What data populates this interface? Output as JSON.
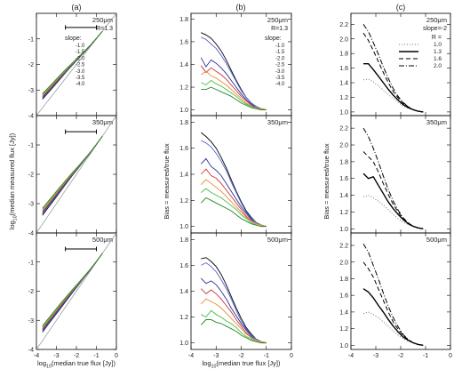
{
  "figure": {
    "panel_letters": [
      "(a)",
      "(b)",
      "(c)"
    ],
    "colors": {
      "frame": "#000000",
      "one_to_one": "#9aa0a6",
      "errbar": "#000000"
    }
  },
  "chart_data": [
    {
      "type": "line",
      "column": "a",
      "xlabel": "log10(median true flux [Jy])",
      "ylabel": "log10(median measured flux [Jy])",
      "xlim": [
        -4,
        0
      ],
      "ylim": [
        -4,
        0
      ],
      "xticks": [
        -4,
        -3,
        -2,
        -1,
        0
      ],
      "yticks": [
        -4,
        -3,
        -2,
        -1
      ],
      "one_to_one_line": true,
      "legend_title": "slope:",
      "series_names": [
        "-1.0",
        "-1.5",
        "-2.0",
        "-2.5",
        "-3.0",
        "-3.5",
        "-4.0"
      ],
      "series_colors": [
        "#000000",
        "#5566cc",
        "#223399",
        "#cc3333",
        "#ee8833",
        "#44bb44",
        "#228822"
      ],
      "panels": [
        {
          "label": "250μm",
          "extra_label": "R=1.3",
          "show_legend": true,
          "errbar": {
            "x": [
              -2.55,
              -1.0
            ],
            "y": -0.55
          },
          "x": [
            -3.7,
            -3.4,
            -3.1,
            -2.8,
            -2.5,
            -2.2,
            -1.9,
            -1.6,
            -1.3,
            -1.0,
            -0.7
          ],
          "offsets": [
            0.45,
            0.4,
            0.36,
            0.32,
            0.28,
            0.22,
            0.16,
            0.1,
            0.05,
            0.02,
            0.0
          ],
          "spread": [
            0.22,
            0.2,
            0.18,
            0.15,
            0.12,
            0.09,
            0.06,
            0.04,
            0.02,
            0.01,
            0.0
          ]
        },
        {
          "label": "350μm",
          "extra_label": "",
          "show_legend": false,
          "errbar": {
            "x": [
              -2.55,
              -1.0
            ],
            "y": -0.55
          },
          "x": [
            -3.7,
            -3.4,
            -3.1,
            -2.8,
            -2.5,
            -2.2,
            -1.9,
            -1.6,
            -1.3,
            -1.0,
            -0.7
          ],
          "offsets": [
            0.42,
            0.38,
            0.34,
            0.3,
            0.26,
            0.21,
            0.15,
            0.1,
            0.05,
            0.02,
            0.0
          ],
          "spread": [
            0.24,
            0.22,
            0.2,
            0.17,
            0.13,
            0.1,
            0.07,
            0.04,
            0.02,
            0.01,
            0.0
          ]
        },
        {
          "label": "500μm",
          "extra_label": "",
          "show_legend": false,
          "errbar": {
            "x": [
              -2.55,
              -1.0
            ],
            "y": -0.55
          },
          "x": [
            -3.7,
            -3.4,
            -3.1,
            -2.8,
            -2.5,
            -2.2,
            -1.9,
            -1.6,
            -1.3,
            -1.0,
            -0.7
          ],
          "offsets": [
            0.4,
            0.37,
            0.33,
            0.29,
            0.25,
            0.2,
            0.15,
            0.1,
            0.05,
            0.02,
            0.0
          ],
          "spread": [
            0.22,
            0.2,
            0.19,
            0.17,
            0.14,
            0.11,
            0.08,
            0.05,
            0.03,
            0.01,
            0.0
          ]
        }
      ]
    },
    {
      "type": "line",
      "column": "b",
      "xlabel": "log10(median true flux [Jy])",
      "ylabel": "Bias = measured/true flux",
      "xlim": [
        -4,
        0
      ],
      "ylim": [
        0.95,
        1.85
      ],
      "xticks": [
        -4,
        -3,
        -2,
        -1,
        0
      ],
      "yticks": [
        1.0,
        1.2,
        1.4,
        1.6,
        1.8
      ],
      "legend_title": "slope:",
      "series_names": [
        "-1.0",
        "-1.5",
        "-2.0",
        "-2.5",
        "-3.0",
        "-3.5",
        "-4.0"
      ],
      "series_colors": [
        "#000000",
        "#5566cc",
        "#223399",
        "#cc3333",
        "#ee8833",
        "#44bb44",
        "#228822"
      ],
      "x": [
        -3.6,
        -3.4,
        -3.2,
        -3.0,
        -2.8,
        -2.6,
        -2.4,
        -2.2,
        -2.0,
        -1.8,
        -1.6,
        -1.4,
        -1.2,
        -1.0
      ],
      "panels": [
        {
          "label": "250μm",
          "extra_label": "R=1.3",
          "show_legend": true,
          "series": [
            {
              "values": [
                1.68,
                1.66,
                1.63,
                1.58,
                1.52,
                1.44,
                1.35,
                1.26,
                1.18,
                1.11,
                1.06,
                1.03,
                1.01,
                1.0
              ]
            },
            {
              "values": [
                1.64,
                1.62,
                1.58,
                1.54,
                1.48,
                1.41,
                1.33,
                1.25,
                1.17,
                1.11,
                1.06,
                1.03,
                1.01,
                1.0
              ]
            },
            {
              "values": [
                1.46,
                1.38,
                1.44,
                1.41,
                1.37,
                1.32,
                1.26,
                1.2,
                1.14,
                1.09,
                1.05,
                1.02,
                1.01,
                1.0
              ]
            },
            {
              "values": [
                1.39,
                1.33,
                1.37,
                1.34,
                1.31,
                1.27,
                1.22,
                1.17,
                1.12,
                1.08,
                1.04,
                1.02,
                1.01,
                1.0
              ]
            },
            {
              "values": [
                1.31,
                1.34,
                1.3,
                1.28,
                1.25,
                1.22,
                1.18,
                1.14,
                1.1,
                1.06,
                1.03,
                1.02,
                1.01,
                1.0
              ]
            },
            {
              "values": [
                1.24,
                1.22,
                1.26,
                1.23,
                1.21,
                1.18,
                1.15,
                1.12,
                1.08,
                1.05,
                1.03,
                1.01,
                1.0,
                1.0
              ]
            },
            {
              "values": [
                1.18,
                1.18,
                1.2,
                1.18,
                1.16,
                1.14,
                1.12,
                1.09,
                1.06,
                1.04,
                1.02,
                1.01,
                1.0,
                1.0
              ]
            }
          ]
        },
        {
          "label": "350μm",
          "extra_label": "",
          "show_legend": false,
          "series": [
            {
              "values": [
                1.72,
                1.69,
                1.65,
                1.6,
                1.53,
                1.45,
                1.36,
                1.27,
                1.19,
                1.12,
                1.07,
                1.03,
                1.01,
                1.0
              ]
            },
            {
              "values": [
                1.66,
                1.64,
                1.61,
                1.56,
                1.5,
                1.43,
                1.34,
                1.26,
                1.18,
                1.11,
                1.06,
                1.03,
                1.01,
                1.0
              ]
            },
            {
              "values": [
                1.48,
                1.52,
                1.46,
                1.43,
                1.39,
                1.33,
                1.27,
                1.21,
                1.15,
                1.1,
                1.05,
                1.02,
                1.01,
                1.0
              ]
            },
            {
              "values": [
                1.4,
                1.44,
                1.39,
                1.37,
                1.33,
                1.28,
                1.23,
                1.18,
                1.13,
                1.08,
                1.04,
                1.02,
                1.01,
                1.0
              ]
            },
            {
              "values": [
                1.32,
                1.36,
                1.33,
                1.3,
                1.27,
                1.23,
                1.19,
                1.15,
                1.11,
                1.07,
                1.04,
                1.02,
                1.01,
                1.0
              ]
            },
            {
              "values": [
                1.26,
                1.29,
                1.26,
                1.24,
                1.22,
                1.19,
                1.16,
                1.13,
                1.09,
                1.06,
                1.03,
                1.01,
                1.0,
                1.0
              ]
            },
            {
              "values": [
                1.18,
                1.22,
                1.2,
                1.18,
                1.16,
                1.14,
                1.12,
                1.09,
                1.06,
                1.04,
                1.02,
                1.01,
                1.0,
                1.0
              ]
            }
          ]
        },
        {
          "label": "500μm",
          "extra_label": "",
          "show_legend": false,
          "series": [
            {
              "values": [
                1.65,
                1.66,
                1.63,
                1.59,
                1.53,
                1.45,
                1.36,
                1.27,
                1.19,
                1.12,
                1.07,
                1.03,
                1.01,
                1.0
              ]
            },
            {
              "values": [
                1.6,
                1.62,
                1.59,
                1.55,
                1.49,
                1.42,
                1.34,
                1.25,
                1.17,
                1.11,
                1.06,
                1.03,
                1.01,
                1.0
              ]
            },
            {
              "values": [
                1.5,
                1.46,
                1.48,
                1.45,
                1.4,
                1.34,
                1.27,
                1.21,
                1.15,
                1.1,
                1.05,
                1.02,
                1.01,
                1.0
              ]
            },
            {
              "values": [
                1.42,
                1.38,
                1.41,
                1.38,
                1.34,
                1.29,
                1.24,
                1.18,
                1.13,
                1.08,
                1.04,
                1.02,
                1.01,
                1.0
              ]
            },
            {
              "values": [
                1.3,
                1.34,
                1.32,
                1.3,
                1.27,
                1.23,
                1.19,
                1.15,
                1.11,
                1.07,
                1.04,
                1.02,
                1.01,
                1.0
              ]
            },
            {
              "values": [
                1.22,
                1.2,
                1.25,
                1.22,
                1.2,
                1.17,
                1.15,
                1.12,
                1.08,
                1.05,
                1.03,
                1.01,
                1.0,
                1.0
              ]
            },
            {
              "values": [
                1.14,
                1.18,
                1.18,
                1.16,
                1.15,
                1.13,
                1.11,
                1.09,
                1.06,
                1.04,
                1.02,
                1.01,
                1.0,
                1.0
              ]
            }
          ]
        }
      ]
    },
    {
      "type": "line",
      "column": "c",
      "xlabel": "",
      "ylabel": "Bias = measured/true flux",
      "xlim": [
        -4,
        0
      ],
      "ylim": [
        0.95,
        2.35
      ],
      "xticks": [
        -4,
        -3,
        -2,
        -1,
        0
      ],
      "yticks": [
        1.0,
        1.2,
        1.4,
        1.6,
        1.8,
        2.0,
        2.2
      ],
      "legend_title": "R =",
      "slope_label": "slope=-2",
      "series_names": [
        "1.0",
        "1.3",
        "1.6",
        "2.0"
      ],
      "series_dash": [
        "1,2",
        "",
        "5,3",
        "6,2,1,2"
      ],
      "series_width": [
        1.0,
        1.4,
        1.0,
        1.0
      ],
      "x": [
        -3.5,
        -3.3,
        -3.1,
        -2.9,
        -2.7,
        -2.5,
        -2.3,
        -2.1,
        -1.9,
        -1.7,
        -1.5,
        -1.3,
        -1.1
      ],
      "panels": [
        {
          "label": "250μm",
          "show_legend": true,
          "series": [
            {
              "values": [
                1.44,
                1.45,
                1.41,
                1.36,
                1.3,
                1.24,
                1.18,
                1.13,
                1.08,
                1.05,
                1.03,
                1.01,
                1.0
              ]
            },
            {
              "values": [
                1.66,
                1.66,
                1.58,
                1.49,
                1.4,
                1.31,
                1.23,
                1.16,
                1.1,
                1.06,
                1.03,
                1.01,
                1.0
              ]
            },
            {
              "values": [
                2.08,
                1.98,
                1.84,
                1.69,
                1.54,
                1.4,
                1.28,
                1.19,
                1.12,
                1.07,
                1.03,
                1.01,
                1.0
              ]
            },
            {
              "values": [
                2.2,
                2.1,
                1.95,
                1.79,
                1.62,
                1.46,
                1.32,
                1.21,
                1.13,
                1.07,
                1.03,
                1.01,
                1.0
              ]
            }
          ]
        },
        {
          "label": "350μm",
          "show_legend": false,
          "series": [
            {
              "values": [
                1.38,
                1.4,
                1.37,
                1.33,
                1.28,
                1.23,
                1.17,
                1.12,
                1.08,
                1.05,
                1.03,
                1.01,
                1.0
              ]
            },
            {
              "values": [
                1.66,
                1.6,
                1.62,
                1.52,
                1.42,
                1.32,
                1.24,
                1.17,
                1.11,
                1.06,
                1.03,
                1.01,
                1.0
              ]
            },
            {
              "values": [
                1.92,
                1.86,
                1.8,
                1.68,
                1.54,
                1.41,
                1.29,
                1.2,
                1.12,
                1.07,
                1.03,
                1.01,
                1.0
              ]
            },
            {
              "values": [
                2.2,
                2.1,
                1.96,
                1.8,
                1.63,
                1.47,
                1.33,
                1.22,
                1.13,
                1.07,
                1.03,
                1.01,
                1.0
              ]
            }
          ]
        },
        {
          "label": "500μm",
          "show_legend": false,
          "series": [
            {
              "values": [
                1.38,
                1.4,
                1.37,
                1.33,
                1.28,
                1.23,
                1.17,
                1.12,
                1.08,
                1.05,
                1.03,
                1.01,
                1.0
              ]
            },
            {
              "values": [
                1.68,
                1.64,
                1.57,
                1.48,
                1.4,
                1.31,
                1.23,
                1.16,
                1.1,
                1.06,
                1.03,
                1.01,
                1.0
              ]
            },
            {
              "values": [
                2.0,
                1.92,
                1.82,
                1.68,
                1.54,
                1.4,
                1.28,
                1.19,
                1.12,
                1.07,
                1.03,
                1.01,
                1.0
              ]
            },
            {
              "values": [
                2.22,
                2.12,
                1.96,
                1.8,
                1.63,
                1.47,
                1.33,
                1.22,
                1.13,
                1.07,
                1.03,
                1.01,
                1.0
              ]
            }
          ]
        }
      ]
    }
  ]
}
